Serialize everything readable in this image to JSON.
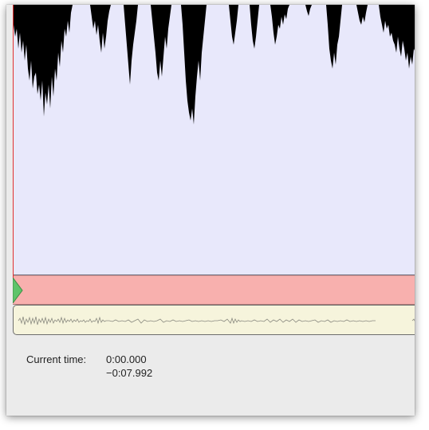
{
  "playback": {
    "current_time_label": "Current time:",
    "current_time": "0:00.000",
    "remaining_time": "−0:07.992"
  },
  "colors": {
    "waveform_background": "#e8e8fb",
    "waveform": "#000000",
    "selection_bar": "#f8b0ae",
    "playhead": "#e03030",
    "start_marker": "#5ec46a",
    "overview_background": "#f6f4dc"
  },
  "icons": {
    "start_marker": "green-triangle-marker-icon"
  }
}
